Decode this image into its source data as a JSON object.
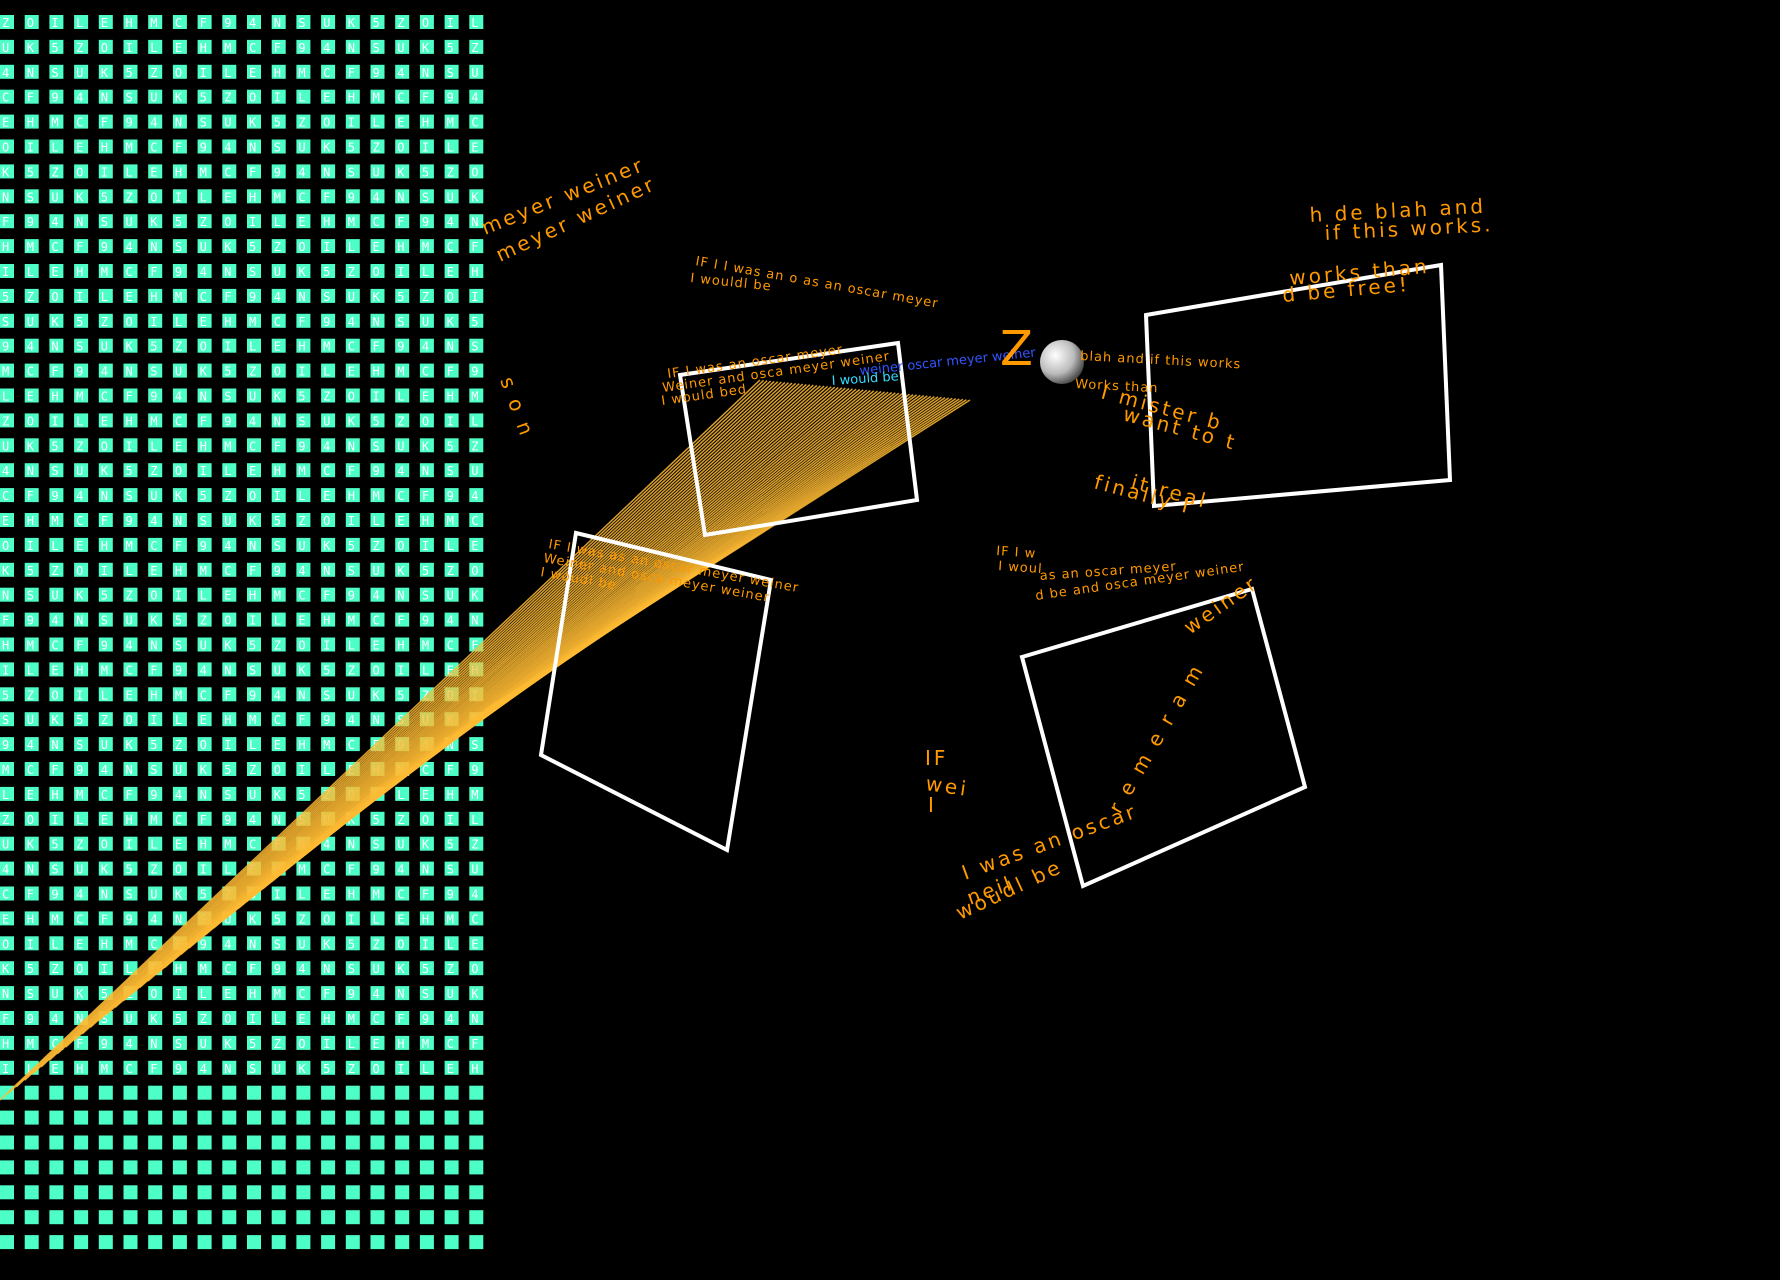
{
  "colors": {
    "background": "#000000",
    "grid_tile": "#4dffc7",
    "grid_glyph": "#ffffff",
    "text": "#ff9900",
    "rays": "#ffbb33",
    "frames": "#ffffff",
    "blue_text": "#3355ff",
    "cyan_text": "#33ddff"
  },
  "grid_glyphs": "ZNMOSCIUFLK9E54H",
  "phrases": {
    "top_left_arc_1": "meyer weiner",
    "top_left_arc_2": "meyer weiner",
    "top_right_1": "h de blah and",
    "top_right_2": "if this works.",
    "top_right_3": "works than",
    "top_right_4": "d be free!",
    "center_top_1": "IF I I was an o as an oscar meyer",
    "center_top_2": "I wouldl be",
    "center_left_1": "IF I was as an oscar meyer weiner",
    "center_left_2": "Weiner and osca meyer weiner",
    "center_left_3": "I woudl be",
    "left_panel_1": "IF I was an oscar meyer",
    "left_panel_2": "Weiner and osca meyer weiner",
    "left_panel_3": "I would bed",
    "blue_text": "weiner oscar meyer weiner",
    "cyan_text": "I would be",
    "right_mid_1": "blah and if this works",
    "right_mid_2": "Works than",
    "right_mid_3": "I mister b",
    "right_mid_4": "want to t",
    "right_mid_5": "it real",
    "right_mid_6": "finally I",
    "mid_small_1": "IF I w",
    "mid_small_2": "as an oscar meyer",
    "mid_small_3": "d be and osca meyer weiner",
    "mid_small_4": "I woul",
    "bottom_arc_1": "I was an oscar",
    "bottom_arc_2": "neil",
    "bottom_arc_3": "woudl be",
    "bottom_right_diag": "weiner",
    "bottom_right_diag_letters": "r e m e r a m",
    "lone_letters_1": "IF",
    "lone_letters_2": "wei",
    "lone_letters_3": "I",
    "scatter_col": "s o n",
    "scatter_col2": "Z"
  }
}
